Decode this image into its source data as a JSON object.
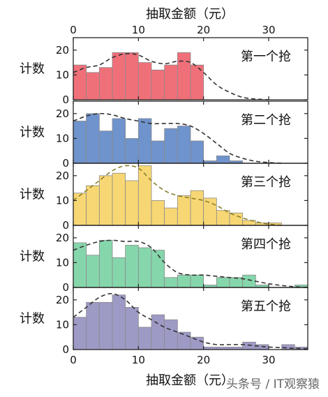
{
  "chart_data": {
    "type": "bar",
    "title": "",
    "xlabel_top": "抽取金额（元）",
    "xlabel_bottom": "抽取金额（元）",
    "ylabel": "计数",
    "xlim": [
      0,
      36
    ],
    "ylim": [
      0,
      25
    ],
    "xticks": [
      0,
      10,
      20,
      30
    ],
    "yticks": [
      0,
      10,
      20
    ],
    "bin_width": 2,
    "bin_starts": [
      0,
      2,
      4,
      6,
      8,
      10,
      12,
      14,
      16,
      18,
      20,
      22,
      24,
      26,
      28,
      30,
      32,
      34
    ],
    "panels": [
      {
        "name": "第一个抢",
        "color": "#f0707a",
        "curve_color": "#333333",
        "values": [
          14,
          11,
          13,
          19,
          19,
          15,
          12,
          14,
          19,
          14
        ],
        "curve": [
          [
            0,
            11
          ],
          [
            2,
            13
          ],
          [
            4,
            14
          ],
          [
            6,
            17
          ],
          [
            8,
            18.5
          ],
          [
            10,
            18
          ],
          [
            12,
            15.5
          ],
          [
            14,
            14.5
          ],
          [
            16,
            15.5
          ],
          [
            18,
            15
          ],
          [
            20,
            11
          ],
          [
            22,
            6
          ],
          [
            24,
            3
          ],
          [
            26,
            1
          ],
          [
            28,
            0.3
          ],
          [
            30,
            0
          ]
        ]
      },
      {
        "name": "第二个抢",
        "color": "#6f93cc",
        "curve_color": "#333333",
        "values": [
          17,
          20,
          13,
          18,
          10,
          18,
          9,
          14,
          15,
          9,
          1,
          3,
          1
        ],
        "curve": [
          [
            0,
            17
          ],
          [
            2,
            19
          ],
          [
            4,
            20
          ],
          [
            6,
            19.5
          ],
          [
            8,
            18
          ],
          [
            10,
            17
          ],
          [
            12,
            16
          ],
          [
            14,
            16
          ],
          [
            16,
            16
          ],
          [
            18,
            15
          ],
          [
            20,
            12
          ],
          [
            22,
            8
          ],
          [
            24,
            4
          ],
          [
            26,
            2
          ],
          [
            28,
            0.8
          ],
          [
            30,
            0.3
          ],
          [
            32,
            0
          ]
        ]
      },
      {
        "name": "第三个抢",
        "color": "#f7d774",
        "curve_color": "#8a7f2a",
        "values": [
          13,
          16,
          20,
          21,
          18,
          24,
          10,
          7,
          12,
          14,
          11,
          6,
          5,
          2,
          1,
          1
        ],
        "curve": [
          [
            0,
            10
          ],
          [
            2,
            14
          ],
          [
            4,
            18
          ],
          [
            6,
            22
          ],
          [
            8,
            24
          ],
          [
            10,
            23
          ],
          [
            12,
            18
          ],
          [
            14,
            14
          ],
          [
            16,
            12
          ],
          [
            18,
            11
          ],
          [
            20,
            10
          ],
          [
            22,
            8
          ],
          [
            24,
            5
          ],
          [
            26,
            3
          ],
          [
            28,
            1.5
          ],
          [
            30,
            0.5
          ],
          [
            32,
            0
          ]
        ]
      },
      {
        "name": "第四个抢",
        "color": "#86d6ac",
        "curve_color": "#333333",
        "values": [
          18,
          13,
          19,
          12,
          17,
          16,
          15,
          4,
          5,
          5,
          1,
          4,
          4,
          5,
          1,
          0,
          0,
          1
        ],
        "curve": [
          [
            0,
            15
          ],
          [
            2,
            17
          ],
          [
            4,
            18.5
          ],
          [
            6,
            19
          ],
          [
            8,
            18.5
          ],
          [
            10,
            18.5
          ],
          [
            12,
            16
          ],
          [
            14,
            10
          ],
          [
            16,
            6
          ],
          [
            18,
            5
          ],
          [
            20,
            5
          ],
          [
            22,
            4.5
          ],
          [
            24,
            4
          ],
          [
            26,
            3.5
          ],
          [
            28,
            2.5
          ],
          [
            30,
            1.5
          ],
          [
            32,
            0.8
          ],
          [
            34,
            0.3
          ],
          [
            36,
            0
          ]
        ]
      },
      {
        "name": "第五个抢",
        "color": "#9e9ac6",
        "curve_color": "#333333",
        "values": [
          13,
          19,
          19,
          22,
          17,
          9,
          14,
          12,
          7,
          5,
          1,
          1,
          1,
          3,
          2,
          0,
          2,
          1
        ],
        "curve": [
          [
            0,
            13
          ],
          [
            2,
            17
          ],
          [
            4,
            21
          ],
          [
            6,
            22.5
          ],
          [
            8,
            20
          ],
          [
            10,
            15
          ],
          [
            12,
            12
          ],
          [
            14,
            9
          ],
          [
            16,
            7
          ],
          [
            18,
            5
          ],
          [
            20,
            3
          ],
          [
            22,
            2
          ],
          [
            24,
            2
          ],
          [
            26,
            2
          ],
          [
            28,
            1.5
          ],
          [
            30,
            1
          ],
          [
            32,
            0.8
          ],
          [
            34,
            0.5
          ],
          [
            36,
            0.3
          ]
        ]
      }
    ]
  },
  "watermark": "头条号 / IT观察猿"
}
